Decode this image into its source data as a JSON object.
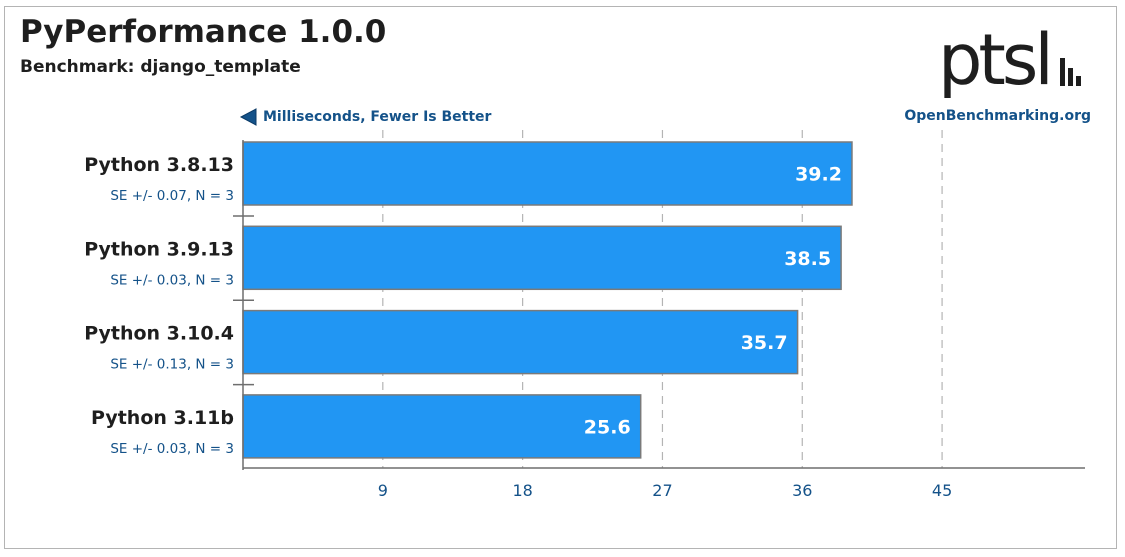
{
  "header": {
    "title": "PyPerformance 1.0.0",
    "subtitle": "Benchmark: django_template",
    "logo_text": "ptsl"
  },
  "chart_data": {
    "type": "bar",
    "orientation": "horizontal",
    "title": "PyPerformance 1.0.0",
    "subtitle": "Benchmark: django_template",
    "xlabel": "Milliseconds, Fewer Is Better",
    "source": "OpenBenchmarking.org",
    "categories": [
      "Python 3.8.13",
      "Python 3.9.13",
      "Python 3.10.4",
      "Python 3.11b"
    ],
    "values": [
      39.2,
      38.5,
      35.7,
      25.6
    ],
    "value_labels": [
      "39.2",
      "38.5",
      "35.7",
      "25.6"
    ],
    "errors": [
      "SE +/- 0.07, N = 3",
      "SE +/- 0.03, N = 3",
      "SE +/- 0.13, N = 3",
      "SE +/- 0.03, N = 3"
    ],
    "x_ticks": [
      9,
      18,
      27,
      36,
      45
    ],
    "xlim": [
      0,
      54.2
    ],
    "grid": true,
    "colors": {
      "bar": "#2196f3",
      "bar_border": "#7a7a7a",
      "accent": "#145289",
      "text": "#1e1e1e",
      "grid": "#b4b4b4"
    }
  }
}
